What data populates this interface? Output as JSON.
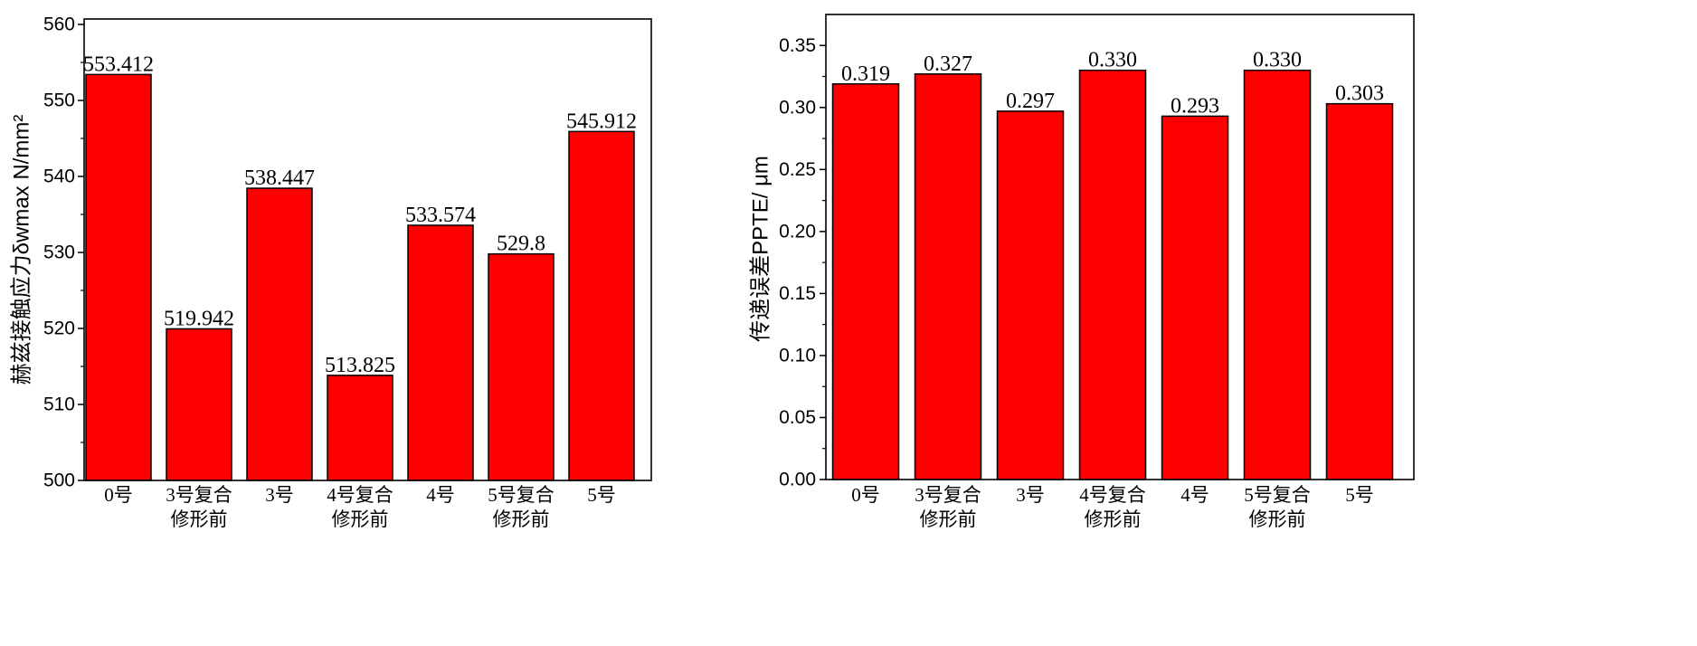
{
  "chart_data": [
    {
      "type": "bar",
      "categories": [
        "0号",
        "3号复合\n修形前",
        "3号",
        "4号复合\n修形前",
        "4号",
        "5号复合\n修形前",
        "5号"
      ],
      "values": [
        553.412,
        519.942,
        538.447,
        513.825,
        533.574,
        529.8,
        545.912
      ],
      "data_labels": [
        "553.412",
        "519.942",
        "538.447",
        "513.825",
        "533.574",
        "529.8",
        "545.912"
      ],
      "ylabel": "赫兹接触应力δwmax N/mm²",
      "ylim": [
        500,
        560
      ],
      "yticks": [
        "500",
        "510",
        "520",
        "530",
        "540",
        "550",
        "560"
      ],
      "grid": false,
      "legend": false,
      "bar_color": "#ff0000",
      "edge_color": "#000000"
    },
    {
      "type": "bar",
      "categories": [
        "0号",
        "3号复合\n修形前",
        "3号",
        "4号复合\n修形前",
        "4号",
        "5号复合\n修形前",
        "5号"
      ],
      "values": [
        0.319,
        0.327,
        0.297,
        0.33,
        0.293,
        0.33,
        0.303
      ],
      "data_labels": [
        "0.319",
        "0.327",
        "0.297",
        "0.330",
        "0.293",
        "0.330",
        "0.303"
      ],
      "ylabel": "传递误差PPTE/ μm",
      "ylim": [
        0,
        0.375
      ],
      "yticks": [
        "0.00",
        "0.05",
        "0.10",
        "0.15",
        "0.20",
        "0.25",
        "0.30",
        "0.35"
      ],
      "grid": false,
      "legend": false,
      "bar_color": "#ff0000",
      "edge_color": "#000000"
    }
  ]
}
